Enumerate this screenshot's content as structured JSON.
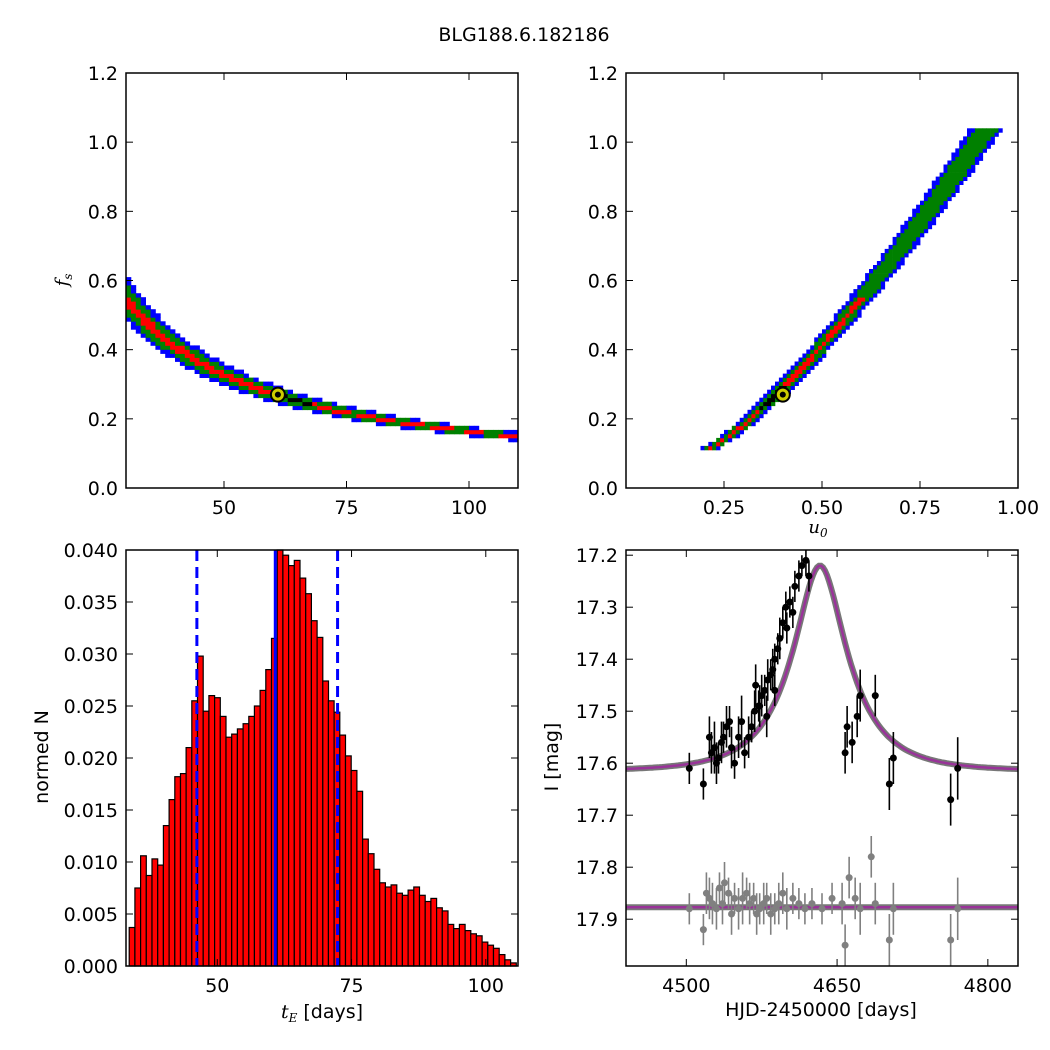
{
  "title": "BLG188.6.182186",
  "colors": {
    "sigma3": "#0000ff",
    "sigma2": "#008000",
    "sigma1": "#ff0000",
    "core": "#000000",
    "best_marker_fill": "#cccc00",
    "hist_fill": "#ff0000",
    "vline": "#0000ff",
    "model": "#993399",
    "data_dark": "#000000",
    "data_grey": "#808080"
  },
  "chart_data": [
    {
      "id": "tE-fs",
      "type": "heatmap",
      "title": "",
      "xlabel": "",
      "ylabel": "f_s",
      "xlim": [
        30,
        110
      ],
      "ylim": [
        0,
        1.2
      ],
      "xticks": [
        "50",
        "75",
        "100"
      ],
      "yticks": [
        "0.0",
        "0.2",
        "0.4",
        "0.6",
        "0.8",
        "1.0",
        "1.2"
      ],
      "relation": "f_s ≈ 16.4 / t_E",
      "fs_range": [
        0.11,
        1.04
      ],
      "best_fit": {
        "tE": 61.0,
        "fs": 0.27
      }
    },
    {
      "id": "u0-fs",
      "type": "heatmap",
      "title": "",
      "xlabel": "u_0",
      "ylabel": "",
      "xlim": [
        0,
        1.0
      ],
      "ylim": [
        0,
        1.2
      ],
      "xticks": [
        "0.25",
        "0.50",
        "0.75",
        "1.00"
      ],
      "yticks": [
        "0.0",
        "0.2",
        "0.4",
        "0.6",
        "0.8",
        "1.0",
        "1.2"
      ],
      "u0_range": [
        0.2,
        0.92
      ],
      "best_fit": {
        "u0": 0.4,
        "fs": 0.27
      }
    },
    {
      "id": "tE-hist",
      "type": "bar",
      "title": "",
      "xlabel": "t_E [days]",
      "ylabel": "normed N",
      "xlim": [
        33,
        106
      ],
      "ylim": [
        0,
        0.04
      ],
      "xticks": [
        "50",
        "75",
        "100"
      ],
      "yticks": [
        "0.000",
        "0.005",
        "0.010",
        "0.015",
        "0.020",
        "0.025",
        "0.030",
        "0.035",
        "0.040"
      ],
      "bin_start": 33.6,
      "bin_width": 1.06,
      "values": [
        0.0037,
        0.0075,
        0.0106,
        0.0087,
        0.0103,
        0.0097,
        0.0135,
        0.016,
        0.0182,
        0.0185,
        0.021,
        0.0255,
        0.0298,
        0.0245,
        0.026,
        0.0258,
        0.024,
        0.022,
        0.0223,
        0.0228,
        0.0233,
        0.024,
        0.025,
        0.0265,
        0.0285,
        0.0315,
        0.04,
        0.0395,
        0.0385,
        0.039,
        0.0373,
        0.0358,
        0.0332,
        0.0316,
        0.0274,
        0.0255,
        0.0244,
        0.0222,
        0.0202,
        0.0188,
        0.0168,
        0.0122,
        0.0108,
        0.0093,
        0.008,
        0.0076,
        0.0078,
        0.007,
        0.0068,
        0.0073,
        0.0076,
        0.0068,
        0.0062,
        0.0065,
        0.0056,
        0.0053,
        0.004,
        0.0036,
        0.004,
        0.0034,
        0.0031,
        0.0029,
        0.0023,
        0.002,
        0.0017,
        0.0011,
        0.0006,
        0.0003
      ],
      "median": 60.8,
      "lower": 46.2,
      "upper": 72.4
    },
    {
      "id": "lightcurve",
      "type": "scatter",
      "title": "",
      "xlabel": "HJD-2450000 [days]",
      "ylabel": "I [mag]",
      "xlim": [
        4440,
        4830
      ],
      "ylim": [
        17.99,
        17.19
      ],
      "xticks": [
        "4500",
        "4650",
        "4800"
      ],
      "yticks": [
        "17.2",
        "17.3",
        "17.4",
        "17.5",
        "17.6",
        "17.7",
        "17.8",
        "17.9"
      ],
      "model": {
        "t0": 4633,
        "baseline": 17.615,
        "peak": 17.22,
        "tE": 61,
        "u0": 0.4
      },
      "residual_baseline": 17.877,
      "series": [
        {
          "points": [
            [
              4503,
              17.61,
              0.03
            ],
            [
              4517,
              17.64,
              0.03
            ],
            [
              4523,
              17.55,
              0.04
            ],
            [
              4525,
              17.58,
              0.04
            ],
            [
              4528,
              17.57,
              0.05
            ],
            [
              4530,
              17.6,
              0.04
            ],
            [
              4532,
              17.59,
              0.03
            ],
            [
              4535,
              17.56,
              0.04
            ],
            [
              4537,
              17.55,
              0.03
            ],
            [
              4540,
              17.53,
              0.04
            ],
            [
              4543,
              17.52,
              0.03
            ],
            [
              4545,
              17.57,
              0.04
            ],
            [
              4548,
              17.6,
              0.03
            ],
            [
              4552,
              17.55,
              0.04
            ],
            [
              4555,
              17.52,
              0.05
            ],
            [
              4558,
              17.58,
              0.03
            ],
            [
              4562,
              17.55,
              0.04
            ],
            [
              4565,
              17.53,
              0.03
            ],
            [
              4568,
              17.5,
              0.04
            ],
            [
              4572,
              17.49,
              0.03
            ],
            [
              4575,
              17.47,
              0.04
            ],
            [
              4578,
              17.46,
              0.03
            ],
            [
              4581,
              17.44,
              0.04
            ],
            [
              4584,
              17.43,
              0.03
            ],
            [
              4586,
              17.42,
              0.04
            ],
            [
              4588,
              17.4,
              0.03
            ],
            [
              4591,
              17.38,
              0.03
            ],
            [
              4593,
              17.36,
              0.04
            ],
            [
              4596,
              17.33,
              0.03
            ],
            [
              4599,
              17.3,
              0.03
            ],
            [
              4603,
              17.29,
              0.03
            ],
            [
              4608,
              17.26,
              0.03
            ],
            [
              4612,
              17.24,
              0.03
            ],
            [
              4615,
              17.22,
              0.02
            ],
            [
              4619,
              17.21,
              0.03
            ],
            [
              4622,
              17.24,
              0.03
            ],
            [
              4569,
              17.45,
              0.04
            ],
            [
              4573,
              17.49,
              0.04
            ],
            [
              4580,
              17.51,
              0.04
            ],
            [
              4588,
              17.46,
              0.03
            ],
            [
              4600,
              17.34,
              0.03
            ],
            [
              4606,
              17.31,
              0.03
            ],
            [
              4658,
              17.58,
              0.04
            ],
            [
              4660,
              17.53,
              0.04
            ],
            [
              4665,
              17.56,
              0.04
            ],
            [
              4670,
              17.51,
              0.04
            ],
            [
              4673,
              17.47,
              0.05
            ],
            [
              4688,
              17.47,
              0.04
            ],
            [
              4702,
              17.64,
              0.05
            ],
            [
              4706,
              17.59,
              0.05
            ],
            [
              4763,
              17.67,
              0.05
            ],
            [
              4770,
              17.61,
              0.06
            ]
          ]
        },
        {
          "points": [
            [
              4503,
              17.88,
              0.03
            ],
            [
              4517,
              17.92,
              0.03
            ],
            [
              4520,
              17.85,
              0.04
            ],
            [
              4523,
              17.86,
              0.04
            ],
            [
              4526,
              17.87,
              0.04
            ],
            [
              4530,
              17.88,
              0.04
            ],
            [
              4533,
              17.84,
              0.03
            ],
            [
              4536,
              17.87,
              0.04
            ],
            [
              4538,
              17.83,
              0.04
            ],
            [
              4542,
              17.85,
              0.03
            ],
            [
              4545,
              17.89,
              0.04
            ],
            [
              4548,
              17.86,
              0.03
            ],
            [
              4552,
              17.88,
              0.04
            ],
            [
              4556,
              17.86,
              0.05
            ],
            [
              4560,
              17.85,
              0.03
            ],
            [
              4563,
              17.87,
              0.04
            ],
            [
              4567,
              17.86,
              0.03
            ],
            [
              4570,
              17.89,
              0.04
            ],
            [
              4573,
              17.88,
              0.03
            ],
            [
              4577,
              17.87,
              0.04
            ],
            [
              4580,
              17.86,
              0.03
            ],
            [
              4584,
              17.89,
              0.04
            ],
            [
              4588,
              17.88,
              0.03
            ],
            [
              4592,
              17.87,
              0.04
            ],
            [
              4596,
              17.85,
              0.04
            ],
            [
              4600,
              17.88,
              0.04
            ],
            [
              4606,
              17.86,
              0.03
            ],
            [
              4612,
              17.87,
              0.03
            ],
            [
              4618,
              17.88,
              0.03
            ],
            [
              4625,
              17.87,
              0.03
            ],
            [
              4635,
              17.88,
              0.03
            ],
            [
              4645,
              17.86,
              0.03
            ],
            [
              4655,
              17.87,
              0.04
            ],
            [
              4658,
              17.95,
              0.04
            ],
            [
              4662,
              17.82,
              0.04
            ],
            [
              4668,
              17.86,
              0.04
            ],
            [
              4673,
              17.88,
              0.05
            ],
            [
              4684,
              17.78,
              0.04
            ],
            [
              4688,
              17.87,
              0.04
            ],
            [
              4702,
              17.94,
              0.05
            ],
            [
              4706,
              17.88,
              0.05
            ],
            [
              4763,
              17.94,
              0.05
            ],
            [
              4770,
              17.88,
              0.06
            ]
          ]
        }
      ]
    }
  ]
}
